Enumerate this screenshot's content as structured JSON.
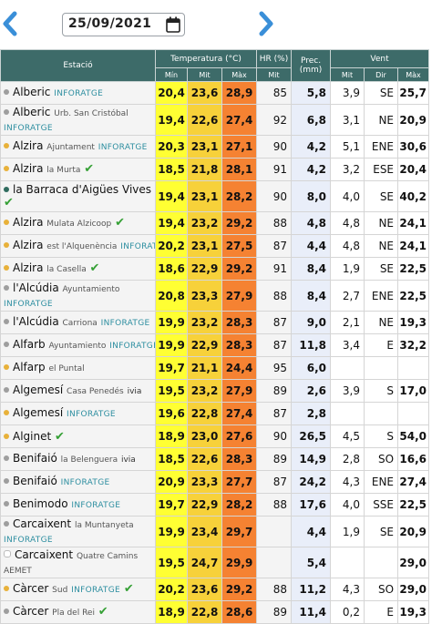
{
  "date": "25/09/2021",
  "icons": {
    "prev": "chevron-left-icon",
    "next": "chevron-right-icon",
    "calendar": "calendar-icon",
    "check": "check-icon"
  },
  "colors": {
    "header": "#3d6b69",
    "min": "#ffff33",
    "mit": "#f7d13a",
    "max": "#f58232",
    "prec": "#e9eef9"
  },
  "headers": {
    "station": "Estació",
    "temperature": "Temperatura (°C)",
    "hr": "HR (%)",
    "prec": "Prec.",
    "prec_unit": "(mm)",
    "wind": "Vent",
    "min": "Mín",
    "mit": "Mit",
    "max": "Màx",
    "hr_mit": "Mit",
    "w_mit": "Mit",
    "w_dir": "Dir",
    "w_max": "Màx"
  },
  "rows": [
    {
      "name": "Alberic",
      "sub": "",
      "tag": "INFORATGE",
      "dot": "#9e9e9e",
      "check": false,
      "min": "20,4",
      "mit": "23,6",
      "max": "28,9",
      "hr": "85",
      "prec": "5,8",
      "wmit": "3,9",
      "dir": "SE",
      "wmax": "25,7"
    },
    {
      "name": "Alberic",
      "sub": "Urb. San Cristóbal",
      "tag": "INFORATGE",
      "dot": "#9e9e9e",
      "check": false,
      "tall": true,
      "min": "19,4",
      "mit": "22,6",
      "max": "27,4",
      "hr": "92",
      "prec": "6,8",
      "wmit": "3,1",
      "dir": "NE",
      "wmax": "20,9"
    },
    {
      "name": "Alzira",
      "sub": "Ajuntament",
      "tag": "INFORATGE",
      "dot": "#e8b13a",
      "check": false,
      "min": "20,3",
      "mit": "23,1",
      "max": "27,1",
      "hr": "90",
      "prec": "4,2",
      "wmit": "5,1",
      "dir": "ENE",
      "wmax": "30,6"
    },
    {
      "name": "Alzira",
      "sub": "la Murta",
      "tag": "",
      "dot": "#e8b13a",
      "check": true,
      "min": "18,5",
      "mit": "21,8",
      "max": "28,1",
      "hr": "91",
      "prec": "4,2",
      "wmit": "3,2",
      "dir": "ESE",
      "wmax": "20,4"
    },
    {
      "name": "la Barraca d'Aigües Vives",
      "sub": "",
      "tag": "",
      "dot": "#2f6b5e",
      "check": true,
      "tall": true,
      "min": "19,4",
      "mit": "23,1",
      "max": "28,2",
      "hr": "90",
      "prec": "8,0",
      "wmit": "4,0",
      "dir": "SE",
      "wmax": "40,2"
    },
    {
      "name": "Alzira",
      "sub": "Mulata Alzicoop",
      "tag": "",
      "dot": "#e8b13a",
      "check": true,
      "min": "19,4",
      "mit": "23,2",
      "max": "29,2",
      "hr": "88",
      "prec": "4,8",
      "wmit": "4,8",
      "dir": "NE",
      "wmax": "24,1"
    },
    {
      "name": "Alzira",
      "sub": "est l'Alquenència",
      "tag": "INFORATGE",
      "dot": "#e8b13a",
      "check": false,
      "min": "20,2",
      "mit": "23,1",
      "max": "27,5",
      "hr": "87",
      "prec": "4,4",
      "wmit": "4,8",
      "dir": "NE",
      "wmax": "24,1"
    },
    {
      "name": "Alzira",
      "sub": "la Casella",
      "tag": "",
      "dot": "#e8b13a",
      "check": true,
      "min": "18,6",
      "mit": "22,9",
      "max": "29,2",
      "hr": "91",
      "prec": "8,4",
      "wmit": "1,9",
      "dir": "SE",
      "wmax": "22,5"
    },
    {
      "name": "l'Alcúdia",
      "sub": "Ayuntamiento",
      "tag": "INFORATGE",
      "dot": "#9e9e9e",
      "check": false,
      "tall": true,
      "min": "20,8",
      "mit": "23,3",
      "max": "27,9",
      "hr": "88",
      "prec": "8,4",
      "wmit": "2,7",
      "dir": "ENE",
      "wmax": "22,5"
    },
    {
      "name": "l'Alcúdia",
      "sub": "Carriona",
      "tag": "INFORATGE",
      "dot": "#9e9e9e",
      "check": false,
      "min": "19,9",
      "mit": "23,2",
      "max": "28,3",
      "hr": "87",
      "prec": "9,0",
      "wmit": "2,1",
      "dir": "NE",
      "wmax": "19,3"
    },
    {
      "name": "Alfarb",
      "sub": "Ayuntamiento",
      "tag": "INFORATGE",
      "dot": "#9e9e9e",
      "check": false,
      "min": "19,9",
      "mit": "22,9",
      "max": "28,3",
      "hr": "87",
      "prec": "11,8",
      "wmit": "3,4",
      "dir": "E",
      "wmax": "32,2"
    },
    {
      "name": "Alfarp",
      "sub": "el Puntal",
      "tag": "",
      "dot": "#e8b13a",
      "check": false,
      "min": "19,7",
      "mit": "21,1",
      "max": "24,4",
      "hr": "95",
      "prec": "6,0",
      "wmit": "",
      "dir": "",
      "wmax": ""
    },
    {
      "name": "Algemesí",
      "sub": "Casa Penedés",
      "tag": "ivia",
      "dot": "#9e9e9e",
      "check": false,
      "min": "19,5",
      "mit": "23,2",
      "max": "27,9",
      "hr": "89",
      "prec": "2,6",
      "wmit": "3,9",
      "dir": "S",
      "wmax": "17,0"
    },
    {
      "name": "Algemesí",
      "sub": "",
      "tag": "INFORATGE",
      "dot": "#e8b13a",
      "check": false,
      "min": "19,6",
      "mit": "22,8",
      "max": "27,4",
      "hr": "87",
      "prec": "2,8",
      "wmit": "",
      "dir": "",
      "wmax": ""
    },
    {
      "name": "Alginet",
      "sub": "",
      "tag": "",
      "dot": "#e8b13a",
      "check": true,
      "min": "18,9",
      "mit": "23,0",
      "max": "27,6",
      "hr": "90",
      "prec": "26,5",
      "wmit": "4,5",
      "dir": "S",
      "wmax": "54,0"
    },
    {
      "name": "Benifaió",
      "sub": "la Belenguera",
      "tag": "ivia",
      "dot": "#9e9e9e",
      "check": false,
      "min": "18,5",
      "mit": "22,6",
      "max": "28,3",
      "hr": "89",
      "prec": "14,9",
      "wmit": "2,8",
      "dir": "SO",
      "wmax": "16,6"
    },
    {
      "name": "Benifaió",
      "sub": "",
      "tag": "INFORATGE",
      "dot": "#9e9e9e",
      "check": false,
      "min": "20,9",
      "mit": "23,3",
      "max": "27,7",
      "hr": "87",
      "prec": "24,2",
      "wmit": "4,3",
      "dir": "ENE",
      "wmax": "27,4"
    },
    {
      "name": "Benimodo",
      "sub": "",
      "tag": "INFORATGE",
      "dot": "#9e9e9e",
      "check": false,
      "min": "19,7",
      "mit": "22,9",
      "max": "28,2",
      "hr": "88",
      "prec": "17,6",
      "wmit": "4,0",
      "dir": "SSE",
      "wmax": "22,5"
    },
    {
      "name": "Carcaixent",
      "sub": "la Muntanyeta",
      "tag": "INFORATGE",
      "dot": "#9e9e9e",
      "check": false,
      "tall": true,
      "min": "19,9",
      "mit": "23,4",
      "max": "29,7",
      "hr": "",
      "prec": "4,4",
      "wmit": "1,9",
      "dir": "SE",
      "wmax": "20,9"
    },
    {
      "name": "Carcaixent",
      "sub": "Quatre Camins",
      "tag": "AEMET",
      "dot": "#ffffff",
      "check": false,
      "tall": true,
      "min": "19,5",
      "mit": "24,7",
      "max": "29,9",
      "hr": "",
      "prec": "5,4",
      "wmit": "",
      "dir": "",
      "wmax": "29,0"
    },
    {
      "name": "Càrcer",
      "sub": "Sud",
      "tag": "INFORATGE",
      "dot": "#e8b13a",
      "check": true,
      "min": "20,2",
      "mit": "23,6",
      "max": "29,2",
      "hr": "88",
      "prec": "11,2",
      "wmit": "4,3",
      "dir": "SO",
      "wmax": "29,0"
    },
    {
      "name": "Càrcer",
      "sub": "Pla del Rei",
      "tag": "",
      "dot": "#9e9e9e",
      "check": true,
      "min": "18,9",
      "mit": "22,8",
      "max": "28,6",
      "hr": "89",
      "prec": "11,4",
      "wmit": "0,2",
      "dir": "E",
      "wmax": "19,3"
    }
  ]
}
